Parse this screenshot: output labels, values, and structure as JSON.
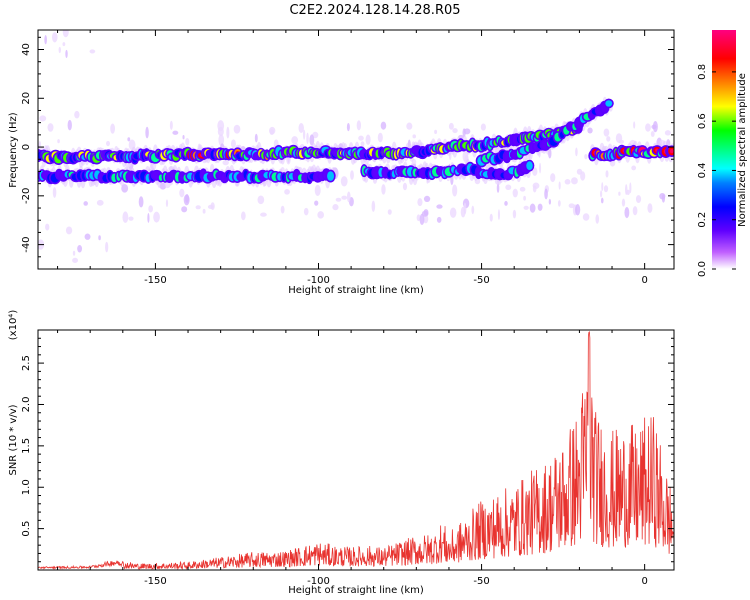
{
  "title": "C2E2.2024.128.14.28.R05",
  "chart_data": [
    {
      "type": "heatmap",
      "xlabel": "Height of straight line (km)",
      "ylabel": "Frequency (Hz)",
      "xlim": [
        -186,
        9
      ],
      "ylim": [
        -50,
        48
      ],
      "xticks": [
        -150,
        -100,
        -50,
        0
      ],
      "xtick_labels": [
        "-150",
        "-100",
        "-50",
        "0"
      ],
      "yticks": [
        -40,
        -20,
        0,
        20,
        40
      ],
      "ytick_labels": [
        "-40",
        "-20",
        "0",
        "20",
        "40"
      ],
      "colorbar": {
        "label": "Normalized spectral amplitude",
        "range": [
          0,
          0.97
        ],
        "ticks": [
          0,
          0.2,
          0.4,
          0.6,
          0.8
        ],
        "tick_labels": [
          "0.0",
          "0.2",
          "0.4",
          "0.6",
          "0.8"
        ]
      },
      "features": [
        {
          "x": [
            -186,
            -160,
            -140,
            -120,
            -100,
            -85,
            -70,
            -60,
            -50,
            -40,
            -30,
            -20
          ],
          "y": [
            -4,
            -4,
            -3,
            -3,
            -2,
            -3,
            -2,
            0,
            1,
            3,
            5,
            8
          ]
        },
        {
          "x": [
            -50,
            -40,
            -30,
            -25,
            -20,
            -15,
            -10
          ],
          "y": [
            -5,
            -3,
            1,
            6,
            10,
            14,
            18
          ]
        },
        {
          "x": [
            -86,
            -70,
            -55,
            -45,
            -35
          ],
          "y": [
            -10,
            -11,
            -9,
            -12,
            -8
          ]
        },
        {
          "x": [
            -186,
            -160,
            -140,
            -120,
            -95
          ],
          "y": [
            -12,
            -12,
            -12,
            -12,
            -12
          ]
        },
        {
          "x": [
            -16,
            -10,
            -5,
            0,
            5,
            9
          ],
          "y": [
            -3,
            -3,
            -2,
            -2,
            -2,
            -2
          ]
        }
      ]
    },
    {
      "type": "line",
      "xlabel": "Height of straight line (km)",
      "ylabel": "SNR (10 * v/v)",
      "exponent_label": "(x10⁴)",
      "xlim": [
        -186,
        9
      ],
      "ylim": [
        0,
        2.9
      ],
      "xticks": [
        -150,
        -100,
        -50,
        0
      ],
      "xtick_labels": [
        "-150",
        "-100",
        "-50",
        "0"
      ],
      "yticks": [
        0.5,
        1.0,
        1.5,
        2.0,
        2.5
      ],
      "ytick_labels": [
        "0.5",
        "1.0",
        "1.5",
        "2.0",
        "2.5"
      ],
      "color": "#e8332f",
      "envelope": {
        "x": [
          -186,
          -170,
          -162,
          -155,
          -140,
          -130,
          -120,
          -110,
          -100,
          -95,
          -90,
          -85,
          -80,
          -75,
          -70,
          -65,
          -62,
          -60,
          -55,
          -50,
          -45,
          -40,
          -35,
          -30,
          -25,
          -20,
          -17,
          -15,
          -12,
          -10,
          -7,
          -5,
          -3,
          0,
          3,
          6,
          9
        ],
        "y": [
          0.04,
          0.05,
          0.13,
          0.08,
          0.1,
          0.16,
          0.22,
          0.24,
          0.35,
          0.3,
          0.28,
          0.3,
          0.28,
          0.35,
          0.42,
          0.45,
          0.6,
          0.45,
          0.65,
          0.85,
          0.95,
          1.05,
          1.2,
          1.35,
          1.6,
          2.0,
          2.9,
          1.95,
          1.8,
          1.7,
          1.75,
          1.85,
          1.7,
          1.85,
          1.9,
          1.35,
          0.9
        ]
      }
    }
  ]
}
